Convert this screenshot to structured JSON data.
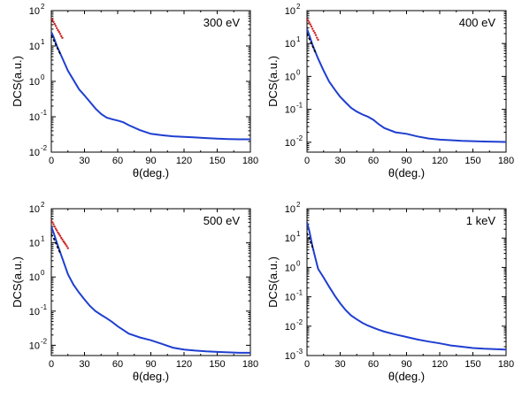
{
  "chart_data": [
    {
      "type": "line",
      "title": "300 eV",
      "xlabel": "θ(deg.)",
      "ylabel": "DCS(a.u.)",
      "xlim": [
        0,
        180
      ],
      "ylim": [
        0.01,
        100
      ],
      "yscale": "log",
      "x_ticks": [
        "0",
        "30",
        "60",
        "90",
        "120",
        "150",
        "180"
      ],
      "y_ticks": [
        "10",
        "10",
        "10",
        "10",
        "10"
      ],
      "y_tick_exps": [
        "-2",
        "-1",
        "0",
        "1",
        "2"
      ],
      "series": [
        {
          "color": "#1f3fd0",
          "x": [
            0,
            2,
            5,
            10,
            15,
            20,
            25,
            30,
            35,
            40,
            45,
            50,
            55,
            60,
            65,
            70,
            80,
            90,
            100,
            110,
            120,
            130,
            140,
            150,
            160,
            170,
            180
          ],
          "y": [
            25,
            18,
            10,
            4.5,
            2.0,
            1.1,
            0.6,
            0.4,
            0.26,
            0.17,
            0.12,
            0.095,
            0.085,
            0.078,
            0.07,
            0.058,
            0.042,
            0.033,
            0.03,
            0.028,
            0.027,
            0.026,
            0.025,
            0.024,
            0.0235,
            0.023,
            0.023
          ]
        },
        {
          "color": "#d02020",
          "style": "dots",
          "x": [
            0,
            1,
            2,
            3,
            4,
            5,
            6,
            7,
            8,
            9,
            10
          ],
          "y": [
            60,
            55,
            48,
            42,
            37,
            32,
            28,
            25,
            22,
            19,
            17
          ]
        },
        {
          "color": "#000000",
          "x": [
            0,
            2,
            4,
            6,
            8
          ],
          "y": [
            20,
            15,
            11,
            8,
            6
          ]
        }
      ]
    },
    {
      "type": "line",
      "title": "400 eV",
      "xlabel": "θ(deg.)",
      "ylabel": "DCS(a.u.)",
      "xlim": [
        0,
        180
      ],
      "ylim": [
        0.005,
        100
      ],
      "yscale": "log",
      "x_ticks": [
        "0",
        "30",
        "60",
        "90",
        "120",
        "150",
        "180"
      ],
      "y_ticks": [
        "10",
        "10",
        "10",
        "10",
        "10"
      ],
      "y_tick_exps": [
        "-2",
        "-1",
        "0",
        "1",
        "2"
      ],
      "series": [
        {
          "color": "#1f3fd0",
          "x": [
            0,
            2,
            5,
            10,
            15,
            20,
            25,
            30,
            35,
            40,
            45,
            50,
            55,
            60,
            65,
            70,
            80,
            90,
            100,
            110,
            120,
            130,
            140,
            150,
            160,
            170,
            180
          ],
          "y": [
            28,
            18,
            9,
            3.5,
            1.5,
            0.7,
            0.4,
            0.24,
            0.16,
            0.11,
            0.085,
            0.07,
            0.06,
            0.048,
            0.035,
            0.027,
            0.02,
            0.018,
            0.015,
            0.013,
            0.012,
            0.0115,
            0.011,
            0.0108,
            0.0105,
            0.0103,
            0.0102
          ]
        },
        {
          "color": "#d02020",
          "style": "dots",
          "x": [
            0,
            1,
            2,
            3,
            4,
            5,
            6,
            7,
            8,
            9,
            10
          ],
          "y": [
            55,
            50,
            44,
            38,
            33,
            28,
            24,
            21,
            18,
            15,
            13
          ]
        },
        {
          "color": "#000000",
          "x": [
            0,
            2,
            4,
            6,
            8
          ],
          "y": [
            20,
            14,
            10,
            7,
            5
          ]
        }
      ]
    },
    {
      "type": "line",
      "title": "500 eV",
      "xlabel": "θ(deg.)",
      "ylabel": "DCS(a.u.)",
      "xlim": [
        0,
        180
      ],
      "ylim": [
        0.005,
        100
      ],
      "yscale": "log",
      "x_ticks": [
        "0",
        "30",
        "60",
        "90",
        "120",
        "150",
        "180"
      ],
      "y_ticks": [
        "10",
        "10",
        "10",
        "10",
        "10"
      ],
      "y_tick_exps": [
        "-2",
        "-1",
        "0",
        "1",
        "2"
      ],
      "series": [
        {
          "color": "#1f3fd0",
          "x": [
            0,
            2,
            5,
            10,
            15,
            20,
            25,
            30,
            35,
            40,
            45,
            50,
            55,
            60,
            65,
            70,
            80,
            90,
            100,
            110,
            120,
            130,
            140,
            150,
            160,
            170,
            180
          ],
          "y": [
            30,
            20,
            10,
            3.5,
            1.2,
            0.6,
            0.35,
            0.22,
            0.14,
            0.1,
            0.078,
            0.062,
            0.048,
            0.036,
            0.028,
            0.022,
            0.017,
            0.014,
            0.011,
            0.0085,
            0.0075,
            0.007,
            0.0066,
            0.0064,
            0.0062,
            0.006,
            0.006
          ]
        },
        {
          "color": "#d02020",
          "style": "dots",
          "x": [
            0,
            1,
            2,
            3,
            4,
            5,
            6,
            7,
            8,
            9,
            10,
            11,
            12,
            13,
            14,
            15
          ],
          "y": [
            45,
            40,
            35,
            30,
            26,
            23,
            20,
            18,
            16,
            14,
            12.5,
            11,
            10,
            9,
            8,
            7
          ]
        },
        {
          "color": "#000000",
          "x": [
            0,
            2,
            4,
            6,
            8
          ],
          "y": [
            18,
            14,
            10,
            7,
            5
          ]
        }
      ]
    },
    {
      "type": "line",
      "title": "1 keV",
      "xlabel": "θ(deg.)",
      "ylabel": "DCS(a.u.)",
      "xlim": [
        0,
        180
      ],
      "ylim": [
        0.001,
        100
      ],
      "yscale": "log",
      "x_ticks": [
        "0",
        "30",
        "60",
        "90",
        "120",
        "150",
        "180"
      ],
      "y_ticks": [
        "10",
        "10",
        "10",
        "10",
        "10",
        "10"
      ],
      "y_tick_exps": [
        "-3",
        "-2",
        "-1",
        "0",
        "1",
        "2"
      ],
      "series": [
        {
          "color": "#1f3fd0",
          "x": [
            0,
            2,
            5,
            10,
            15,
            20,
            25,
            30,
            35,
            40,
            45,
            50,
            55,
            60,
            65,
            70,
            80,
            90,
            100,
            110,
            120,
            130,
            140,
            150,
            160,
            170,
            180
          ],
          "y": [
            35,
            18,
            5,
            0.9,
            0.45,
            0.22,
            0.11,
            0.06,
            0.035,
            0.023,
            0.017,
            0.013,
            0.0105,
            0.0088,
            0.0075,
            0.0065,
            0.0052,
            0.0043,
            0.0035,
            0.003,
            0.0026,
            0.0022,
            0.002,
            0.0018,
            0.0017,
            0.00165,
            0.0016
          ]
        },
        {
          "color": "#000000",
          "x": [
            0,
            2,
            4,
            6
          ],
          "y": [
            15,
            10,
            6,
            4
          ]
        }
      ]
    }
  ]
}
